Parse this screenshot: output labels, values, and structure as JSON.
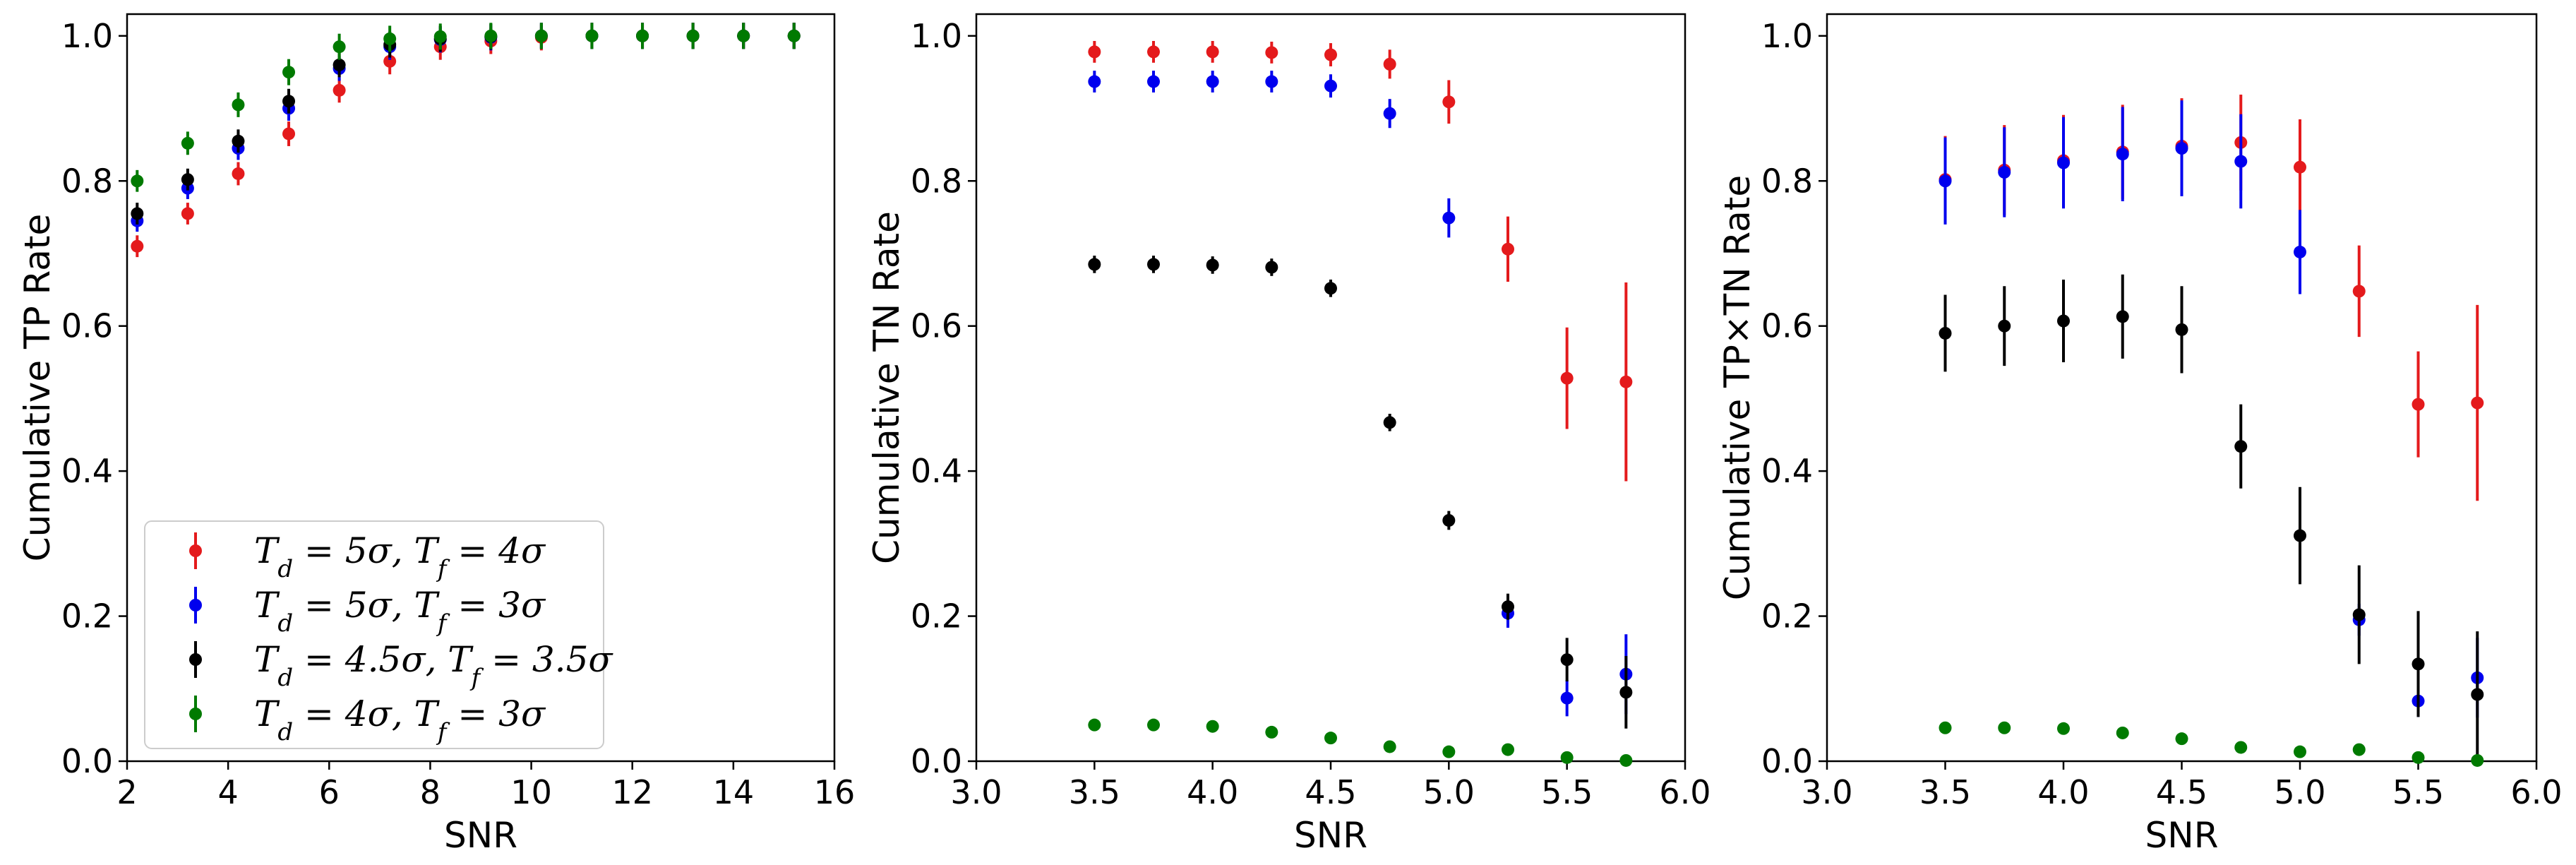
{
  "chart_data": [
    {
      "type": "scatter",
      "xlabel": "SNR",
      "ylabel": "Cumulative TP Rate",
      "xlim": [
        2,
        16
      ],
      "ylim": [
        0,
        1.03
      ],
      "xticks": [
        2,
        4,
        6,
        8,
        10,
        12,
        14,
        16
      ],
      "yticks": [
        0.0,
        0.2,
        0.4,
        0.6,
        0.8,
        1.0
      ],
      "grid": false,
      "legend": "lower-left",
      "series": [
        {
          "name": "T_d = 5σ, T_f = 4σ",
          "color": "#e41a1c",
          "x": [
            2.2,
            3.2,
            4.2,
            5.2,
            6.2,
            7.2,
            8.2,
            9.2,
            10.2,
            11.2,
            12.2,
            13.2,
            14.2,
            15.2
          ],
          "y": [
            0.71,
            0.755,
            0.81,
            0.865,
            0.925,
            0.965,
            0.985,
            0.993,
            0.998,
            1.0,
            1.0,
            1.0,
            1.0,
            1.0
          ],
          "err": [
            0.015,
            0.015,
            0.016,
            0.017,
            0.017,
            0.018,
            0.018,
            0.018,
            0.018,
            0.018,
            0.018,
            0.018,
            0.018,
            0.018
          ]
        },
        {
          "name": "T_d = 5σ, T_f = 3σ",
          "color": "#0000ee",
          "x": [
            2.2,
            3.2,
            4.2,
            5.2,
            6.2,
            7.2,
            8.2,
            9.2,
            10.2,
            11.2,
            12.2,
            13.2,
            14.2,
            15.2
          ],
          "y": [
            0.745,
            0.79,
            0.845,
            0.9,
            0.955,
            0.985,
            0.995,
            0.998,
            1.0,
            1.0,
            1.0,
            1.0,
            1.0,
            1.0
          ],
          "err": [
            0.015,
            0.015,
            0.016,
            0.017,
            0.017,
            0.018,
            0.018,
            0.018,
            0.018,
            0.018,
            0.018,
            0.018,
            0.018,
            0.018
          ]
        },
        {
          "name": "T_d = 4.5σ, T_f = 3.5σ",
          "color": "#000000",
          "x": [
            2.2,
            3.2,
            4.2,
            5.2,
            6.2,
            7.2,
            8.2,
            9.2,
            10.2,
            11.2,
            12.2,
            13.2,
            14.2,
            15.2
          ],
          "y": [
            0.755,
            0.802,
            0.855,
            0.91,
            0.96,
            0.988,
            0.996,
            0.999,
            1.0,
            1.0,
            1.0,
            1.0,
            1.0,
            1.0
          ],
          "err": [
            0.015,
            0.015,
            0.016,
            0.017,
            0.017,
            0.018,
            0.018,
            0.018,
            0.018,
            0.018,
            0.018,
            0.018,
            0.018,
            0.018
          ]
        },
        {
          "name": "T_d = 4σ, T_f = 3σ",
          "color": "#007a00",
          "x": [
            2.2,
            3.2,
            4.2,
            5.2,
            6.2,
            7.2,
            8.2,
            9.2,
            10.2,
            11.2,
            12.2,
            13.2,
            14.2,
            15.2
          ],
          "y": [
            0.8,
            0.852,
            0.905,
            0.95,
            0.985,
            0.996,
            0.999,
            1.0,
            1.0,
            1.0,
            1.0,
            1.0,
            1.0,
            1.0
          ],
          "err": [
            0.015,
            0.016,
            0.017,
            0.018,
            0.018,
            0.018,
            0.018,
            0.018,
            0.018,
            0.018,
            0.018,
            0.018,
            0.018,
            0.018
          ]
        }
      ]
    },
    {
      "type": "scatter",
      "xlabel": "SNR",
      "ylabel": "Cumulative TN Rate",
      "xlim": [
        3.0,
        6.0
      ],
      "ylim": [
        0,
        1.03
      ],
      "xticks": [
        3.0,
        3.5,
        4.0,
        4.5,
        5.0,
        5.5,
        6.0
      ],
      "yticks": [
        0.0,
        0.2,
        0.4,
        0.6,
        0.8,
        1.0
      ],
      "grid": false,
      "series": [
        {
          "name": "T_d = 5σ, T_f = 4σ",
          "color": "#e41a1c",
          "x": [
            3.5,
            3.75,
            4.0,
            4.25,
            4.5,
            4.75,
            5.0,
            5.25,
            5.5,
            5.75
          ],
          "y": [
            0.978,
            0.978,
            0.978,
            0.977,
            0.974,
            0.961,
            0.909,
            0.706,
            0.528,
            0.523
          ],
          "err": [
            0.015,
            0.015,
            0.015,
            0.015,
            0.016,
            0.02,
            0.03,
            0.045,
            0.07,
            0.137
          ]
        },
        {
          "name": "T_d = 5σ, T_f = 3σ",
          "color": "#0000ee",
          "x": [
            3.5,
            3.75,
            4.0,
            4.25,
            4.5,
            4.75,
            5.0,
            5.25,
            5.5,
            5.75
          ],
          "y": [
            0.937,
            0.937,
            0.937,
            0.937,
            0.931,
            0.893,
            0.749,
            0.204,
            0.087,
            0.12
          ],
          "err": [
            0.015,
            0.015,
            0.015,
            0.015,
            0.016,
            0.02,
            0.027,
            0.02,
            0.025,
            0.055
          ]
        },
        {
          "name": "T_d = 4.5σ, T_f = 3.5σ",
          "color": "#000000",
          "x": [
            3.5,
            3.75,
            4.0,
            4.25,
            4.5,
            4.75,
            5.0,
            5.25,
            5.5,
            5.75
          ],
          "y": [
            0.685,
            0.685,
            0.684,
            0.681,
            0.652,
            0.467,
            0.332,
            0.213,
            0.14,
            0.095
          ],
          "err": [
            0.012,
            0.012,
            0.012,
            0.012,
            0.012,
            0.012,
            0.013,
            0.018,
            0.03,
            0.05
          ]
        },
        {
          "name": "T_d = 4σ, T_f = 3σ",
          "color": "#007a00",
          "x": [
            3.5,
            3.75,
            4.0,
            4.25,
            4.5,
            4.75,
            5.0,
            5.25,
            5.5,
            5.75
          ],
          "y": [
            0.05,
            0.05,
            0.048,
            0.04,
            0.032,
            0.02,
            0.013,
            0.016,
            0.005,
            0.001
          ],
          "err": [
            0.004,
            0.004,
            0.004,
            0.004,
            0.003,
            0.003,
            0.002,
            0.003,
            0.002,
            0.001
          ]
        }
      ]
    },
    {
      "type": "scatter",
      "xlabel": "SNR",
      "ylabel": "Cumulative TP×TN Rate",
      "xlim": [
        3.0,
        6.0
      ],
      "ylim": [
        0,
        1.03
      ],
      "xticks": [
        3.0,
        3.5,
        4.0,
        4.5,
        5.0,
        5.5,
        6.0
      ],
      "yticks": [
        0.0,
        0.2,
        0.4,
        0.6,
        0.8,
        1.0
      ],
      "grid": false,
      "series": [
        {
          "name": "T_d = 5σ, T_f = 4σ",
          "color": "#e41a1c",
          "x": [
            3.5,
            3.75,
            4.0,
            4.25,
            4.5,
            4.75,
            5.0,
            5.25,
            5.5,
            5.75
          ],
          "y": [
            0.802,
            0.815,
            0.828,
            0.84,
            0.848,
            0.853,
            0.819,
            0.648,
            0.492,
            0.494
          ],
          "err": [
            0.06,
            0.062,
            0.063,
            0.065,
            0.066,
            0.066,
            0.066,
            0.063,
            0.073,
            0.135
          ]
        },
        {
          "name": "T_d = 5σ, T_f = 3σ",
          "color": "#0000ee",
          "x": [
            3.5,
            3.75,
            4.0,
            4.25,
            4.5,
            4.75,
            5.0,
            5.25,
            5.5,
            5.75
          ],
          "y": [
            0.8,
            0.812,
            0.825,
            0.837,
            0.845,
            0.827,
            0.702,
            0.195,
            0.083,
            0.115
          ],
          "err": [
            0.06,
            0.062,
            0.063,
            0.065,
            0.066,
            0.065,
            0.058,
            0.022,
            0.022,
            0.055
          ]
        },
        {
          "name": "T_d = 4.5σ, T_f = 3.5σ",
          "color": "#000000",
          "x": [
            3.5,
            3.75,
            4.0,
            4.25,
            4.5,
            4.75,
            5.0,
            5.25,
            5.5,
            5.75
          ],
          "y": [
            0.59,
            0.6,
            0.607,
            0.613,
            0.595,
            0.434,
            0.311,
            0.202,
            0.134,
            0.092
          ],
          "err": [
            0.053,
            0.055,
            0.057,
            0.058,
            0.06,
            0.058,
            0.067,
            0.068,
            0.073,
            0.087
          ]
        },
        {
          "name": "T_d = 4σ, T_f = 3σ",
          "color": "#007a00",
          "x": [
            3.5,
            3.75,
            4.0,
            4.25,
            4.5,
            4.75,
            5.0,
            5.25,
            5.5,
            5.75
          ],
          "y": [
            0.046,
            0.046,
            0.045,
            0.039,
            0.031,
            0.019,
            0.013,
            0.016,
            0.005,
            0.001
          ],
          "err": [
            0.004,
            0.004,
            0.004,
            0.004,
            0.003,
            0.003,
            0.002,
            0.003,
            0.002,
            0.001
          ]
        }
      ]
    }
  ]
}
